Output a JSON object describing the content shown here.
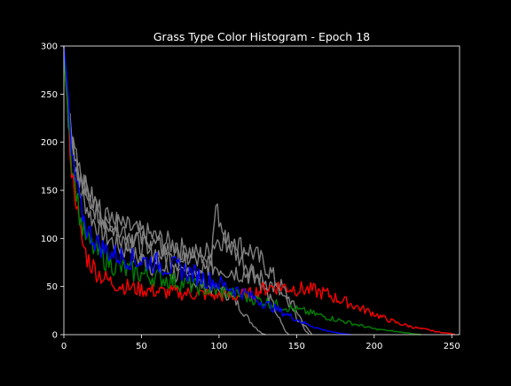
{
  "chart_data": {
    "type": "line",
    "title": "Grass Type Color Histogram - Epoch 18",
    "xlabel": "",
    "ylabel": "",
    "xlim": [
      0,
      255
    ],
    "ylim": [
      0,
      300
    ],
    "xticks": [
      0,
      50,
      100,
      150,
      200,
      250
    ],
    "yticks": [
      0,
      50,
      100,
      150,
      200,
      250,
      300
    ],
    "grid": false,
    "legend": "none",
    "colors": {
      "background": "#000000",
      "axes": "#ffffff",
      "gray": "#808080",
      "red": "#ff0000",
      "green": "#008000",
      "blue": "#0000ff"
    },
    "series": [
      {
        "color": "gray",
        "x": [
          0,
          3,
          6,
          8,
          10,
          13,
          16,
          20,
          25,
          30,
          35,
          40,
          43,
          45,
          50,
          55,
          60,
          65,
          70,
          75,
          80,
          85,
          90,
          95,
          100,
          105,
          110,
          115,
          120,
          125,
          128,
          130
        ],
        "y": [
          300,
          225,
          190,
          165,
          150,
          140,
          128,
          115,
          105,
          98,
          92,
          88,
          95,
          82,
          78,
          74,
          70,
          67,
          64,
          61,
          58,
          55,
          52,
          49,
          46,
          43,
          36,
          25,
          14,
          5,
          1,
          0
        ]
      },
      {
        "color": "gray",
        "x": [
          0,
          3,
          6,
          10,
          15,
          20,
          25,
          30,
          35,
          40,
          45,
          50,
          55,
          60,
          65,
          70,
          75,
          80,
          85,
          90,
          95,
          100,
          105,
          110,
          115,
          120,
          125,
          130,
          135,
          140,
          145,
          150,
          155,
          160
        ],
        "y": [
          300,
          240,
          200,
          165,
          145,
          130,
          122,
          118,
          115,
          112,
          109,
          106,
          104,
          100,
          97,
          94,
          90,
          87,
          84,
          82,
          92,
          100,
          95,
          102,
          90,
          88,
          80,
          72,
          60,
          50,
          38,
          25,
          10,
          0
        ]
      },
      {
        "color": "gray",
        "x": [
          0,
          3,
          6,
          10,
          15,
          20,
          25,
          30,
          35,
          40,
          45,
          50,
          55,
          60,
          65,
          70,
          75,
          80,
          85,
          90,
          95,
          98,
          100,
          105,
          110,
          115,
          120,
          125,
          130,
          135,
          140,
          143,
          145
        ],
        "y": [
          300,
          230,
          195,
          170,
          148,
          132,
          120,
          112,
          106,
          100,
          96,
          92,
          88,
          85,
          82,
          79,
          76,
          73,
          70,
          68,
          75,
          140,
          118,
          95,
          86,
          78,
          70,
          60,
          45,
          30,
          12,
          3,
          0
        ]
      },
      {
        "color": "gray",
        "x": [
          0,
          3,
          6,
          10,
          15,
          20,
          25,
          30,
          35,
          40,
          45,
          50,
          55,
          60,
          65,
          70,
          75,
          80,
          85,
          90,
          95,
          100,
          105,
          110,
          115,
          120,
          125,
          130,
          135,
          140,
          145,
          150,
          155,
          158
        ],
        "y": [
          300,
          235,
          198,
          168,
          150,
          138,
          128,
          120,
          114,
          108,
          103,
          99,
          95,
          92,
          89,
          86,
          83,
          80,
          77,
          74,
          72,
          70,
          68,
          66,
          64,
          62,
          60,
          56,
          50,
          42,
          30,
          18,
          6,
          0
        ]
      },
      {
        "color": "red",
        "x": [
          0,
          3,
          5,
          8,
          10,
          12,
          15,
          20,
          25,
          30,
          35,
          40,
          45,
          50,
          55,
          60,
          65,
          70,
          75,
          80,
          85,
          90,
          95,
          100,
          105,
          110,
          115,
          120,
          125,
          130,
          135,
          140,
          145,
          150,
          155,
          160,
          165,
          170,
          175,
          180,
          185,
          190,
          195,
          200,
          205,
          210,
          215,
          220,
          225,
          230,
          235,
          240,
          245,
          250,
          252
        ],
        "y": [
          300,
          220,
          170,
          140,
          110,
          95,
          80,
          68,
          60,
          55,
          52,
          50,
          48,
          47,
          46,
          45,
          44,
          44,
          43,
          43,
          42,
          42,
          41,
          41,
          40,
          40,
          41,
          42,
          45,
          48,
          50,
          50,
          49,
          48,
          47,
          46,
          44,
          42,
          38,
          35,
          32,
          28,
          25,
          22,
          18,
          15,
          12,
          10,
          8,
          6,
          5,
          3,
          2,
          1,
          0
        ]
      },
      {
        "color": "green",
        "x": [
          0,
          3,
          5,
          8,
          10,
          12,
          15,
          20,
          25,
          30,
          35,
          40,
          45,
          50,
          55,
          60,
          65,
          70,
          75,
          80,
          85,
          90,
          95,
          100,
          105,
          110,
          115,
          120,
          125,
          130,
          135,
          140,
          145,
          150,
          155,
          160,
          165,
          170,
          175,
          180,
          185,
          190,
          195,
          200,
          205,
          210,
          215,
          220,
          225,
          230
        ],
        "y": [
          300,
          230,
          180,
          150,
          125,
          110,
          98,
          88,
          80,
          75,
          70,
          67,
          65,
          63,
          61,
          60,
          58,
          56,
          54,
          52,
          50,
          48,
          46,
          45,
          44,
          42,
          40,
          38,
          36,
          34,
          32,
          30,
          28,
          26,
          24,
          22,
          20,
          18,
          16,
          14,
          12,
          10,
          8,
          6,
          5,
          4,
          3,
          2,
          1,
          0
        ]
      },
      {
        "color": "blue",
        "x": [
          0,
          3,
          5,
          8,
          10,
          12,
          15,
          20,
          25,
          30,
          35,
          40,
          45,
          50,
          55,
          60,
          65,
          70,
          75,
          80,
          85,
          90,
          95,
          100,
          105,
          110,
          115,
          120,
          125,
          130,
          135,
          140,
          145,
          150,
          155,
          160,
          165,
          170,
          175,
          180,
          185
        ],
        "y": [
          300,
          240,
          185,
          158,
          140,
          125,
          110,
          98,
          90,
          85,
          82,
          80,
          78,
          77,
          76,
          74,
          72,
          70,
          68,
          65,
          62,
          59,
          56,
          53,
          50,
          47,
          44,
          40,
          36,
          32,
          28,
          24,
          20,
          16,
          12,
          9,
          6,
          4,
          2,
          1,
          0
        ]
      }
    ]
  }
}
